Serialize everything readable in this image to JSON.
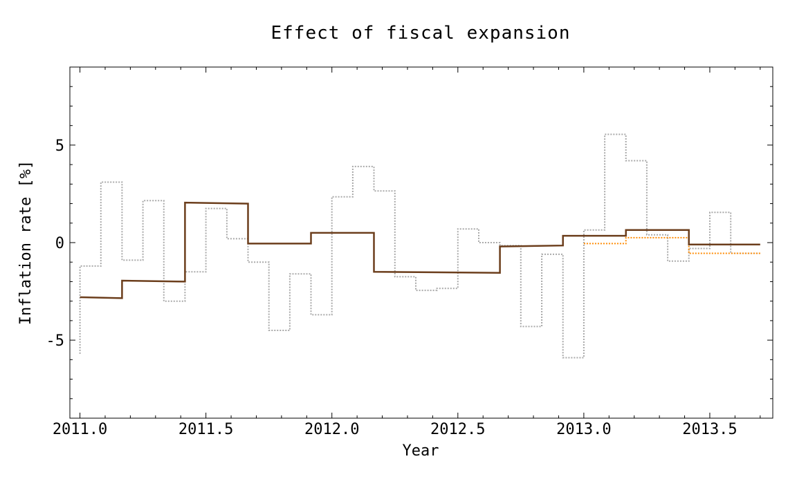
{
  "chart_data": {
    "type": "line",
    "title": "Effect of fiscal expansion",
    "xlabel": "Year",
    "ylabel": "Inflation rate [%]",
    "xlim": [
      2010.96,
      2013.75
    ],
    "ylim": [
      -9,
      9
    ],
    "xticks": [
      2011.0,
      2011.5,
      2012.0,
      2012.5,
      2013.0,
      2013.5
    ],
    "xtick_labels": [
      "2011.0",
      "2011.5",
      "2012.0",
      "2012.5",
      "2013.0",
      "2013.5"
    ],
    "yticks": [
      -5,
      0,
      5
    ],
    "ytick_labels": [
      "-5",
      "0",
      "5"
    ],
    "grid": false,
    "step_series": true,
    "series": [
      {
        "style": "dotted",
        "color": "#a8a8a8",
        "x": [
          2011.0,
          2011.0,
          2011.083,
          2011.083,
          2011.167,
          2011.167,
          2011.25,
          2011.25,
          2011.333,
          2011.333,
          2011.417,
          2011.417,
          2011.5,
          2011.5,
          2011.583,
          2011.583,
          2011.667,
          2011.667,
          2011.75,
          2011.75,
          2011.833,
          2011.833,
          2011.917,
          2011.917,
          2012.0,
          2012.0,
          2012.083,
          2012.083,
          2012.167,
          2012.167,
          2012.25,
          2012.25,
          2012.333,
          2012.333,
          2012.417,
          2012.417,
          2012.5,
          2012.5,
          2012.583,
          2012.583,
          2012.667,
          2012.667,
          2012.75,
          2012.75,
          2012.833,
          2012.833,
          2012.917,
          2012.917,
          2013.0,
          2013.0,
          2013.083,
          2013.083,
          2013.167,
          2013.167,
          2013.25,
          2013.25,
          2013.333,
          2013.333,
          2013.417,
          2013.417,
          2013.5,
          2013.5,
          2013.583,
          2013.583,
          2013.7
        ],
        "y": [
          -5.7,
          -1.2,
          -1.2,
          3.1,
          3.1,
          -0.9,
          -0.9,
          2.15,
          2.15,
          -3.0,
          -3.0,
          -1.5,
          -1.5,
          1.75,
          1.75,
          0.2,
          0.2,
          -1.0,
          -1.0,
          -4.5,
          -4.5,
          -1.6,
          -1.6,
          -3.7,
          -3.7,
          2.35,
          2.35,
          3.9,
          3.9,
          2.65,
          2.65,
          -1.75,
          -1.75,
          -2.45,
          -2.45,
          -2.35,
          -2.35,
          0.7,
          0.7,
          0.0,
          0.0,
          -0.15,
          -0.15,
          -4.3,
          -4.3,
          -0.6,
          -0.6,
          -5.9,
          -5.9,
          0.65,
          0.65,
          5.55,
          5.55,
          4.2,
          4.2,
          0.4,
          0.4,
          -0.95,
          -0.95,
          -0.3,
          -0.3,
          1.55,
          1.55,
          -0.55,
          -0.55
        ]
      },
      {
        "style": "dotted",
        "color": "#ff8a00",
        "x": [
          2013.0,
          2013.167,
          2013.167,
          2013.417,
          2013.417,
          2013.7
        ],
        "y": [
          -0.05,
          -0.05,
          0.25,
          0.25,
          -0.55,
          -0.55
        ]
      },
      {
        "style": "solid",
        "color": "#6b3d1b",
        "x": [
          2011.0,
          2011.167,
          2011.167,
          2011.417,
          2011.417,
          2011.667,
          2011.667,
          2011.917,
          2011.917,
          2012.167,
          2012.167,
          2012.667,
          2012.667,
          2012.917,
          2012.917,
          2013.167,
          2013.167,
          2013.417,
          2013.417,
          2013.7
        ],
        "y": [
          -2.8,
          -2.85,
          -1.95,
          -2.0,
          2.05,
          2.0,
          -0.05,
          -0.05,
          0.5,
          0.5,
          -1.5,
          -1.55,
          -0.2,
          -0.15,
          0.35,
          0.35,
          0.65,
          0.65,
          -0.1,
          -0.1
        ]
      }
    ]
  }
}
